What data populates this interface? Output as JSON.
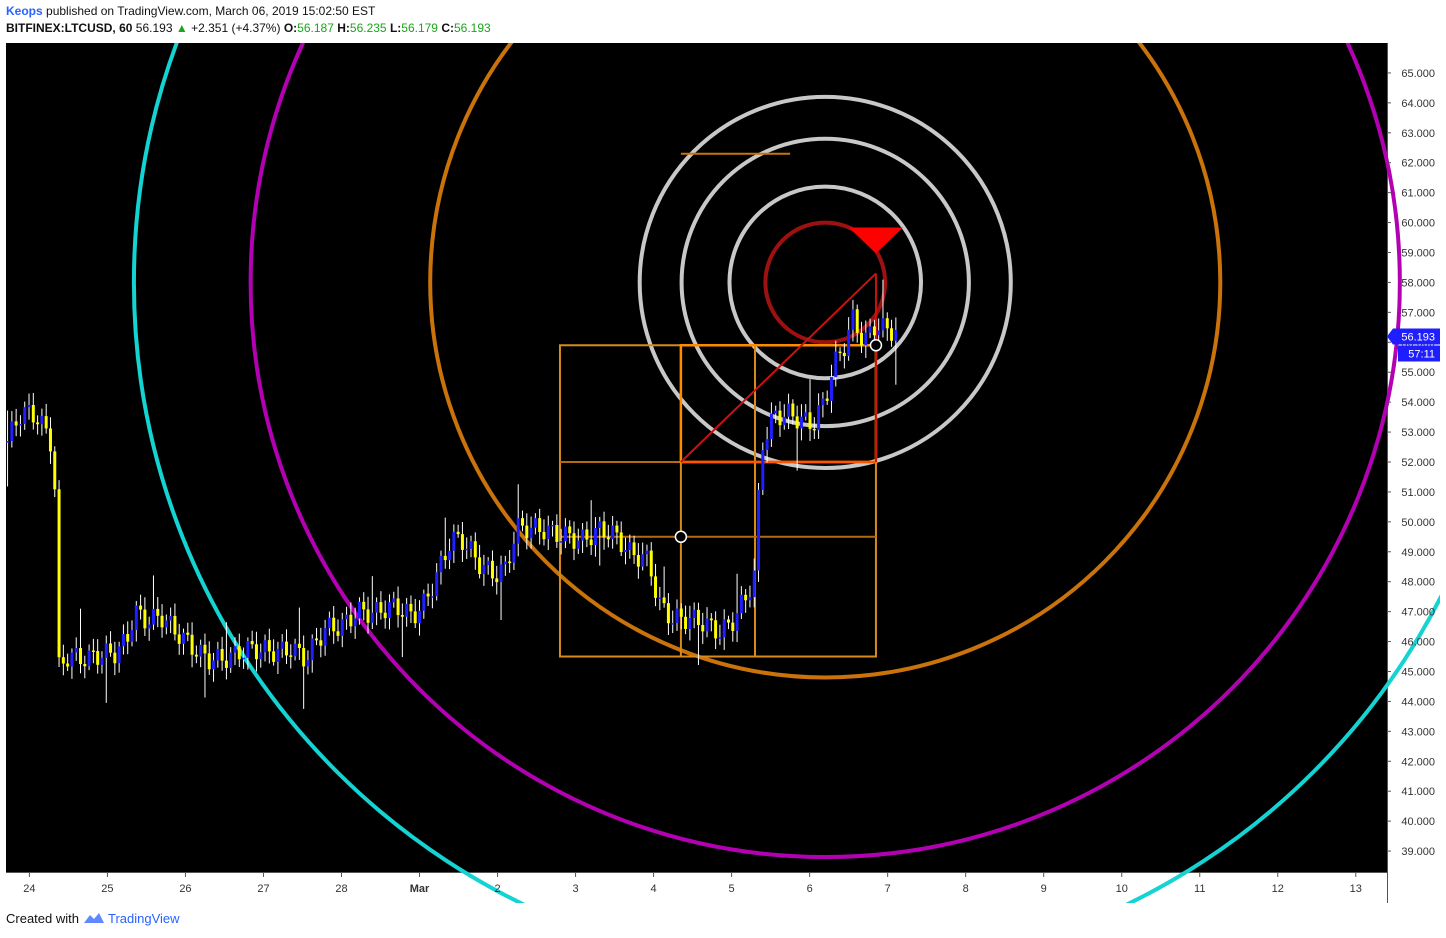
{
  "header": {
    "author": "Keops",
    "published": "published on TradingView.com, March 06, 2019 15:02:50 EST",
    "symbol": "BITFINEX:LTCUSD, 60",
    "last": "56.193",
    "change": "+2.351 (+4.37%)",
    "o_label": "O:",
    "o_value": "56.187",
    "h_label": "H:",
    "h_value": "56.235",
    "l_label": "L:",
    "l_value": "56.179",
    "c_label": "C:",
    "c_value": "56.193"
  },
  "footer": {
    "created": "Created with",
    "brand": "TradingView"
  },
  "chart_data": {
    "type": "candlestick",
    "y_ticks": [
      "65.000",
      "64.000",
      "63.000",
      "62.000",
      "61.000",
      "60.000",
      "59.000",
      "58.000",
      "57.000",
      "56.000",
      "55.000",
      "54.000",
      "53.000",
      "52.000",
      "51.000",
      "50.000",
      "49.000",
      "48.000",
      "47.000",
      "46.000",
      "45.000",
      "44.000",
      "43.000",
      "42.000",
      "41.000",
      "40.000",
      "39.000"
    ],
    "ylim": [
      38.3,
      66.0
    ],
    "x_ticks": [
      {
        "label": "24",
        "x": 0
      },
      {
        "label": "25",
        "x": 1
      },
      {
        "label": "26",
        "x": 2
      },
      {
        "label": "27",
        "x": 3
      },
      {
        "label": "28",
        "x": 4
      },
      {
        "label": "Mar",
        "x": 5
      },
      {
        "label": "2",
        "x": 6
      },
      {
        "label": "3",
        "x": 7
      },
      {
        "label": "4",
        "x": 8
      },
      {
        "label": "5",
        "x": 9
      },
      {
        "label": "6",
        "x": 10
      },
      {
        "label": "7",
        "x": 11
      },
      {
        "label": "8",
        "x": 12
      },
      {
        "label": "9",
        "x": 13
      },
      {
        "label": "10",
        "x": 14
      },
      {
        "label": "11",
        "x": 15
      },
      {
        "label": "12",
        "x": 16
      },
      {
        "label": "13",
        "x": 17
      }
    ],
    "xlim": [
      -0.3,
      17.4
    ],
    "price_label": "56.193",
    "countdown_label": "57:11",
    "colors": {
      "background": "#000000",
      "up": "#1f1fff",
      "down": "#ffff00",
      "wick": "#ffffff",
      "axis_text": "#333333"
    },
    "price_path": [
      [
        -0.28,
        52.7
      ],
      [
        -0.1,
        53.5
      ],
      [
        0.1,
        53.4
      ],
      [
        0.25,
        52.9
      ],
      [
        0.32,
        52.5
      ],
      [
        0.35,
        45.2
      ],
      [
        0.5,
        45.7
      ],
      [
        0.75,
        45.3
      ],
      [
        0.95,
        45.4
      ],
      [
        1.1,
        45.6
      ],
      [
        1.25,
        46.2
      ],
      [
        1.35,
        47.2
      ],
      [
        1.5,
        46.8
      ],
      [
        1.7,
        46.7
      ],
      [
        1.85,
        46.2
      ],
      [
        2.05,
        45.9
      ],
      [
        2.3,
        45.6
      ],
      [
        2.6,
        45.4
      ],
      [
        2.85,
        45.6
      ],
      [
        3.1,
        45.8
      ],
      [
        3.35,
        45.9
      ],
      [
        3.55,
        45.3
      ],
      [
        3.65,
        45.7
      ],
      [
        3.8,
        46.3
      ],
      [
        4.0,
        46.6
      ],
      [
        4.2,
        47.2
      ],
      [
        4.45,
        46.9
      ],
      [
        4.7,
        47.0
      ],
      [
        4.9,
        46.9
      ],
      [
        5.05,
        47.4
      ],
      [
        5.2,
        48.2
      ],
      [
        5.4,
        49.3
      ],
      [
        5.55,
        49.2
      ],
      [
        5.75,
        48.6
      ],
      [
        5.95,
        48.4
      ],
      [
        6.1,
        48.6
      ],
      [
        6.25,
        49.8
      ],
      [
        6.45,
        49.6
      ],
      [
        6.7,
        49.6
      ],
      [
        6.9,
        49.7
      ],
      [
        7.1,
        49.5
      ],
      [
        7.3,
        49.6
      ],
      [
        7.5,
        49.4
      ],
      [
        7.7,
        49.0
      ],
      [
        7.9,
        49.0
      ],
      [
        8.0,
        48.3
      ],
      [
        8.05,
        47.4
      ],
      [
        8.25,
        46.6
      ],
      [
        8.45,
        46.6
      ],
      [
        8.65,
        46.7
      ],
      [
        8.85,
        46.5
      ],
      [
        9.0,
        46.7
      ],
      [
        9.2,
        47.4
      ],
      [
        9.3,
        48.1
      ],
      [
        9.33,
        50.1
      ],
      [
        9.4,
        52.5
      ],
      [
        9.55,
        53.6
      ],
      [
        9.75,
        53.8
      ],
      [
        9.95,
        53.4
      ],
      [
        10.05,
        53.2
      ],
      [
        10.2,
        53.9
      ],
      [
        10.3,
        55.0
      ],
      [
        10.45,
        55.9
      ],
      [
        10.55,
        56.9
      ],
      [
        10.7,
        56.2
      ],
      [
        10.85,
        56.7
      ],
      [
        11.0,
        56.3
      ],
      [
        11.15,
        56.2
      ]
    ],
    "overlay": {
      "center": [
        10.2,
        58.0
      ],
      "circle_radii_y": [
        2.0,
        3.2,
        4.8,
        6.2,
        13.2,
        19.2,
        23.1
      ],
      "circle_colors": [
        "#9e1111",
        "#c8c8c8",
        "#c8c8c8",
        "#c8c8c8",
        "#c9730a",
        "#b300b3",
        "#14d3d3"
      ],
      "grid_x": [
        6.8,
        8.35,
        9.3,
        10.85
      ],
      "grid_y": [
        55.9,
        52.0,
        49.5,
        45.5
      ],
      "short_line": {
        "x": [
          8.35,
          9.75
        ],
        "y": 62.3
      },
      "diagonal": {
        "from": [
          8.35,
          52.0
        ],
        "to": [
          10.85,
          58.3
        ]
      },
      "triangle_at": [
        10.85,
        59.4
      ],
      "dots": [
        [
          8.35,
          49.5
        ],
        [
          10.85,
          55.9
        ]
      ]
    }
  }
}
